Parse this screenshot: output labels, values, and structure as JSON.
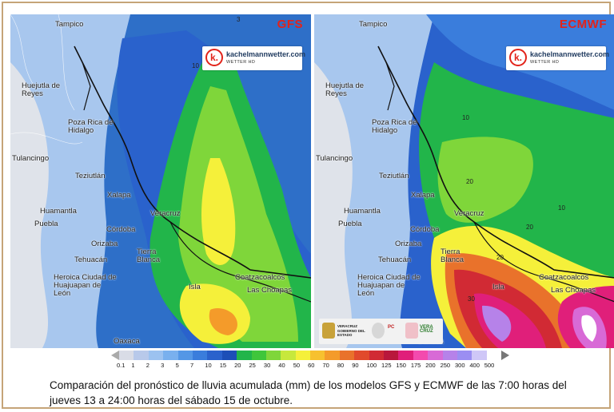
{
  "maps": [
    {
      "model": "GFS",
      "logo": {
        "mark": "k.",
        "site": "kachelmannwetter.com",
        "sub": "WETTER HD"
      },
      "cities": [
        "Tampico",
        "Huejutla de Reyes",
        "Poza Rica de Hidalgo",
        "Tulancingo",
        "Teziutlán",
        "Xalapa",
        "Huamantla",
        "Puebla",
        "Córdoba",
        "Orizaba",
        "Tehuacán",
        "Tierra Blanca",
        "Veracruz",
        "Heroica Ciudad de Huajuapan de León",
        "Isla",
        "Coatzacoalcos",
        "Las Choapas",
        "Oaxaca"
      ],
      "contours": [
        "10",
        "3"
      ]
    },
    {
      "model": "ECMWF",
      "logo": {
        "mark": "k.",
        "site": "kachelmannwetter.com",
        "sub": "WETTER HD"
      },
      "cities": [
        "Tampico",
        "Huejutla de Reyes",
        "Poza Rica de Hidalgo",
        "Tulancingo",
        "Teziutlán",
        "Xalapa",
        "Huamantla",
        "Puebla",
        "Córdoba",
        "Orizaba",
        "Tehuacán",
        "Tierra Blanca",
        "Veracruz",
        "Heroica Ciudad de Huajuapan de León",
        "Isla",
        "Coatzacoalcos",
        "Las Choapas",
        "Oaxaca"
      ],
      "contours": [
        "10",
        "20",
        "20",
        "10",
        "20",
        "30"
      ],
      "gov_logos": [
        "VERACRUZ",
        "GOBIERNO DEL ESTADO",
        "PC",
        "VERA CRUZ"
      ]
    }
  ],
  "colorbar": {
    "unit": "mm",
    "labels": [
      "0.1",
      "1",
      "2",
      "3",
      "5",
      "7",
      "10",
      "15",
      "20",
      "25",
      "30",
      "40",
      "50",
      "60",
      "70",
      "80",
      "90",
      "100",
      "125",
      "150",
      "175",
      "200",
      "250",
      "300",
      "400",
      "500"
    ],
    "colors": [
      "#d9dce6",
      "#b8c9ea",
      "#9cc2f0",
      "#79b0ee",
      "#5497e6",
      "#3a7ddc",
      "#2a62cc",
      "#1d4fb7",
      "#22b54a",
      "#3fc63b",
      "#7fd63a",
      "#c7e83c",
      "#f5f03a",
      "#f7c12f",
      "#f49b2a",
      "#e9722b",
      "#e14a2c",
      "#d12a34",
      "#b9173c",
      "#e01f7a",
      "#f34aae",
      "#d86ad6",
      "#b682e9",
      "#9b8ef2",
      "#cfc7f7",
      "#ffffff"
    ]
  },
  "caption": "Comparación del pronóstico de lluvia acumulada (mm) de los modelos GFS y ECMWF de las 7:00 horas del jueves 13 a 24:00 horas del sábado 15 de octubre."
}
